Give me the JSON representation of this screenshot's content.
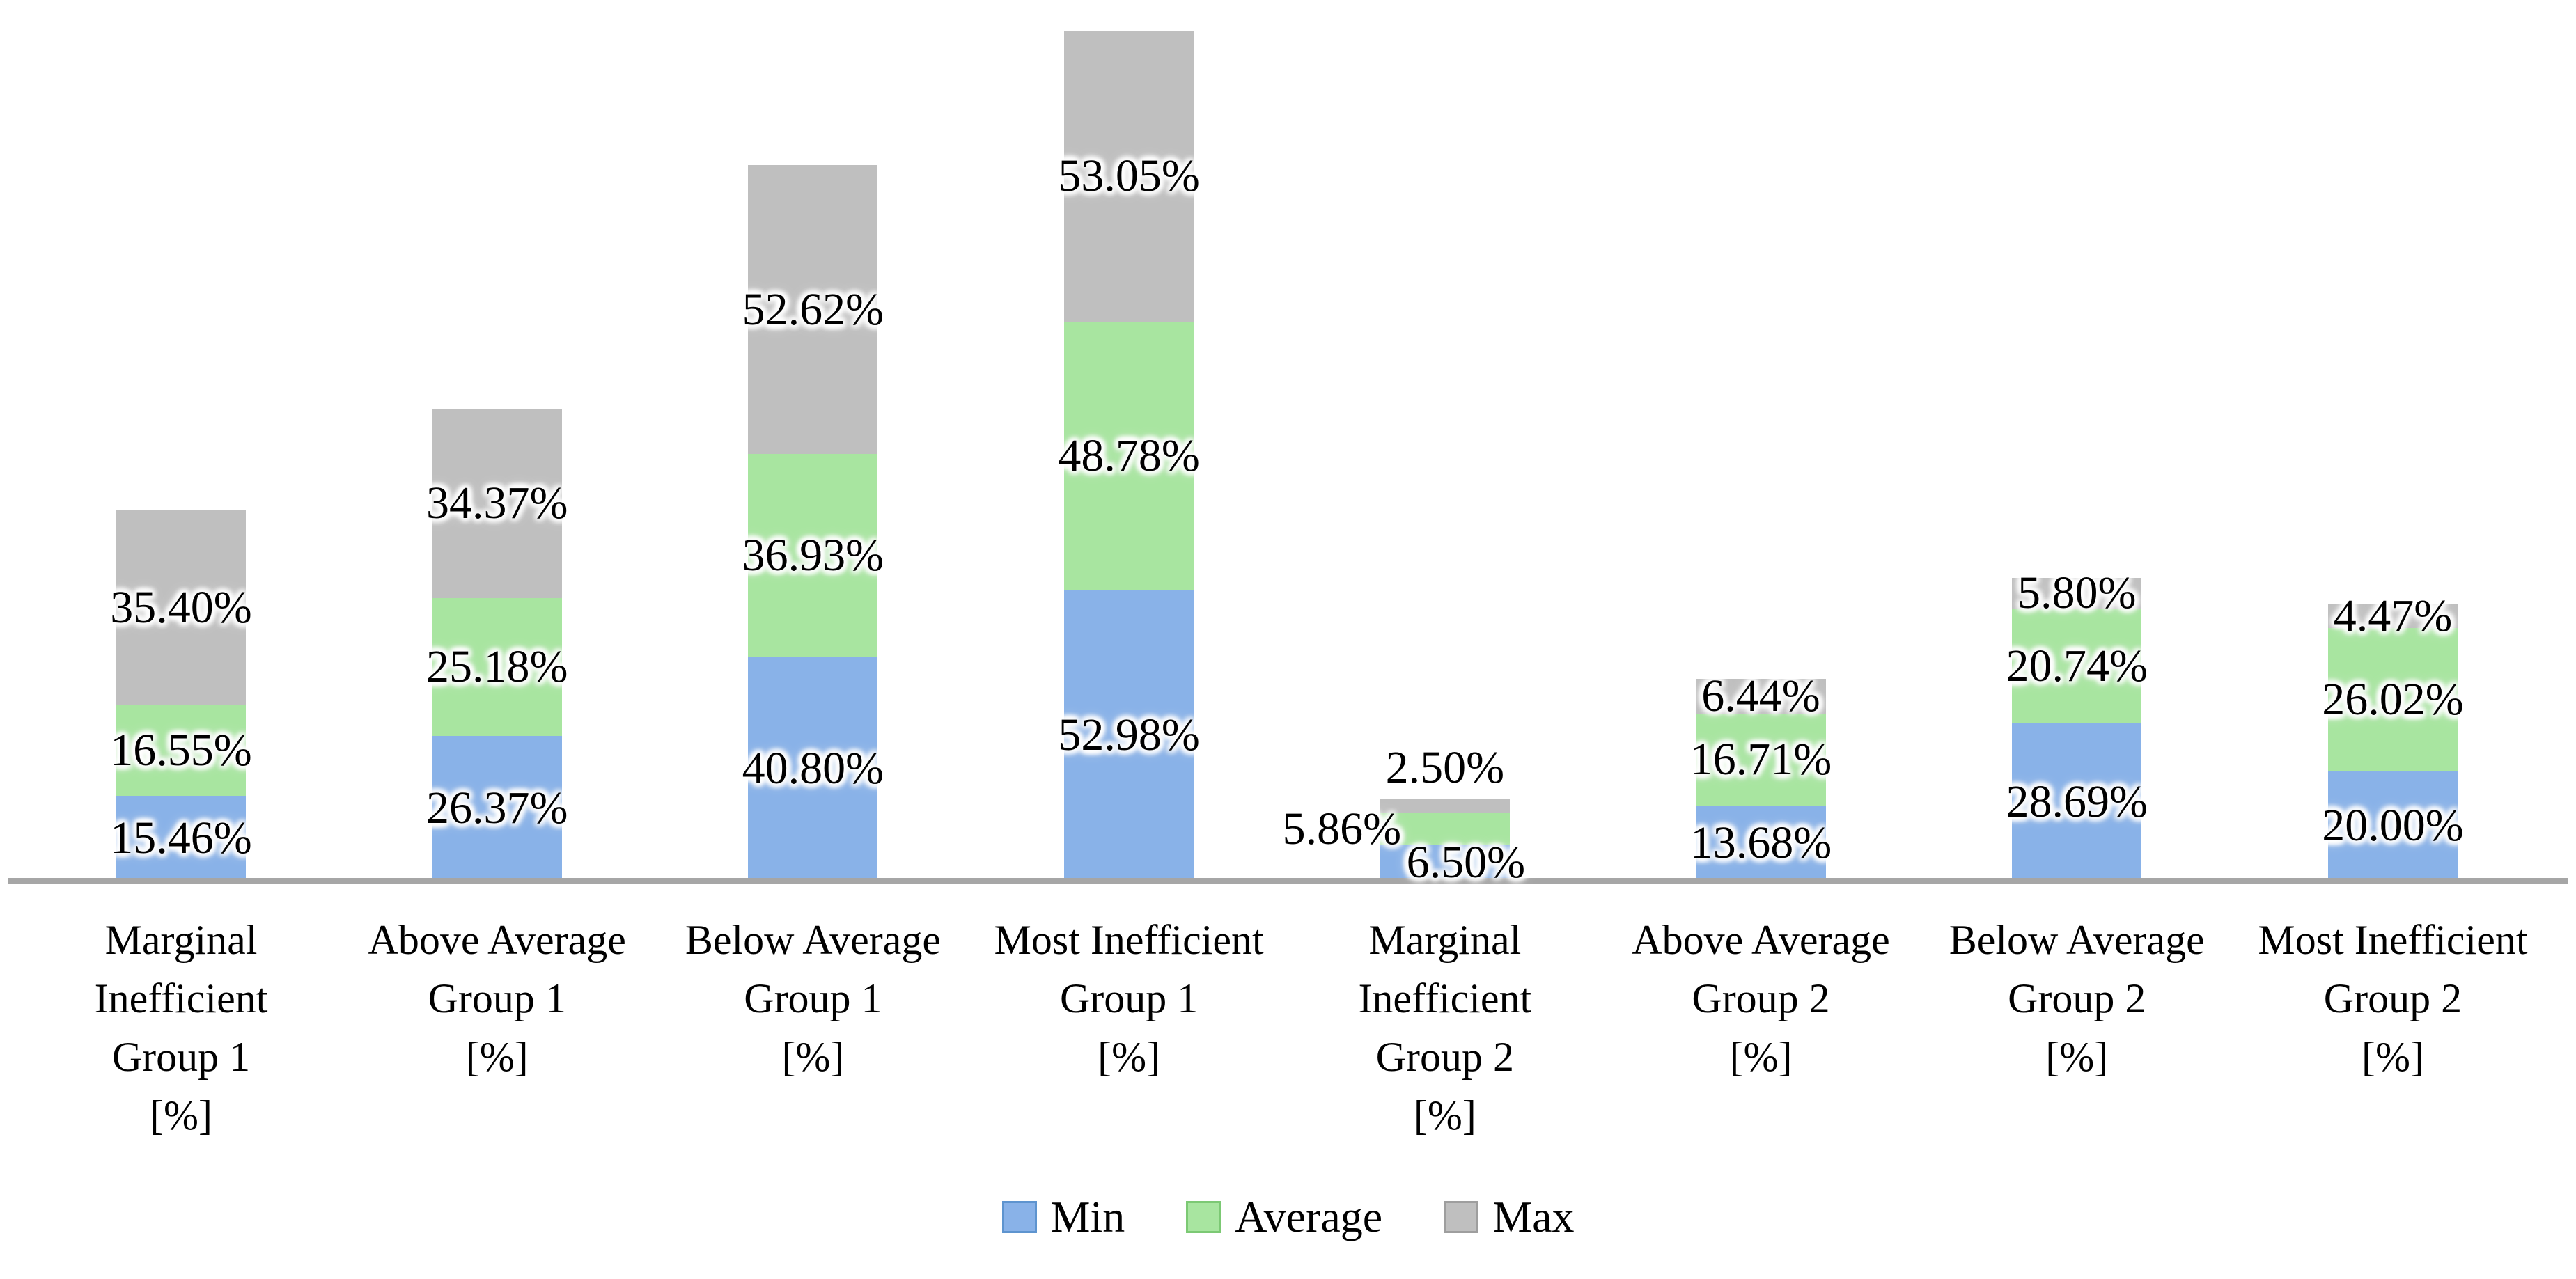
{
  "chart_data": {
    "type": "bar",
    "stacked": true,
    "orientation": "vertical",
    "title": "",
    "xlabel": "",
    "ylabel": "",
    "gridlines": false,
    "y_axis_visible": false,
    "value_unit": "%",
    "categories": [
      {
        "id": "marginal-inefficient-group-1",
        "label": "Marginal Inefficient Group 1 [%]",
        "lines": [
          "Marginal",
          "Inefficient",
          "Group 1",
          "[%]"
        ]
      },
      {
        "id": "above-average-group-1",
        "label": "Above Average Group 1 [%]",
        "lines": [
          "Above Average",
          "Group 1",
          "[%]"
        ]
      },
      {
        "id": "below-average-group-1",
        "label": "Below Average Group 1 [%]",
        "lines": [
          "Below Average",
          "Group 1",
          "[%]"
        ]
      },
      {
        "id": "most-inefficient-group-1",
        "label": "Most Inefficient Group 1 [%]",
        "lines": [
          "Most Inefficient",
          "Group 1",
          "[%]"
        ]
      },
      {
        "id": "marginal-inefficient-group-2",
        "label": "Marginal Inefficient Group 2 [%]",
        "lines": [
          "Marginal",
          "Inefficient",
          "Group 2",
          "[%]"
        ]
      },
      {
        "id": "above-average-group-2",
        "label": "Above Average Group 2 [%]",
        "lines": [
          "Above Average",
          "Group 2",
          "[%]"
        ]
      },
      {
        "id": "below-average-group-2",
        "label": "Below Average Group 2 [%]",
        "lines": [
          "Below Average",
          "Group 2",
          "[%]"
        ]
      },
      {
        "id": "most-inefficient-group-2",
        "label": "Most Inefficient Group 2 [%]",
        "lines": [
          "Most Inefficient",
          "Group 2",
          "[%]"
        ]
      }
    ],
    "series": [
      {
        "name": "Min",
        "color": "#89B2E8",
        "swatch_border": "#5E94CF",
        "values": [
          15.46,
          26.37,
          40.8,
          52.98,
          6.5,
          13.68,
          28.69,
          20.0
        ],
        "labels": [
          "15.46%",
          "26.37%",
          "40.80%",
          "52.98%",
          "6.50%",
          "13.68%",
          "28.69%",
          "20.00%"
        ]
      },
      {
        "name": "Average",
        "color": "#A8E5A0",
        "swatch_border": "#7CC974",
        "values": [
          16.55,
          25.18,
          36.93,
          48.78,
          5.86,
          16.71,
          20.74,
          26.02
        ],
        "labels": [
          "16.55%",
          "25.18%",
          "36.93%",
          "48.78%",
          "5.86%",
          "16.71%",
          "20.74%",
          "26.02%"
        ]
      },
      {
        "name": "Max",
        "color": "#BFBFBF",
        "swatch_border": "#9E9E9E",
        "values": [
          35.4,
          34.37,
          52.62,
          53.05,
          2.5,
          6.44,
          5.8,
          4.47
        ],
        "labels": [
          "35.40%",
          "34.37%",
          "52.62%",
          "53.05%",
          "2.50%",
          "6.44%",
          "5.80%",
          "4.47%"
        ]
      }
    ],
    "legend": {
      "position": "bottom",
      "items": [
        "Min",
        "Average",
        "Max"
      ]
    },
    "axis": {
      "baseline_color": "#A6A6A6"
    },
    "label_overrides": {
      "4": {
        "Min": {
          "dx": 30
        },
        "Average": {
          "dx": -148
        },
        "Max": {
          "above": true
        }
      }
    }
  }
}
